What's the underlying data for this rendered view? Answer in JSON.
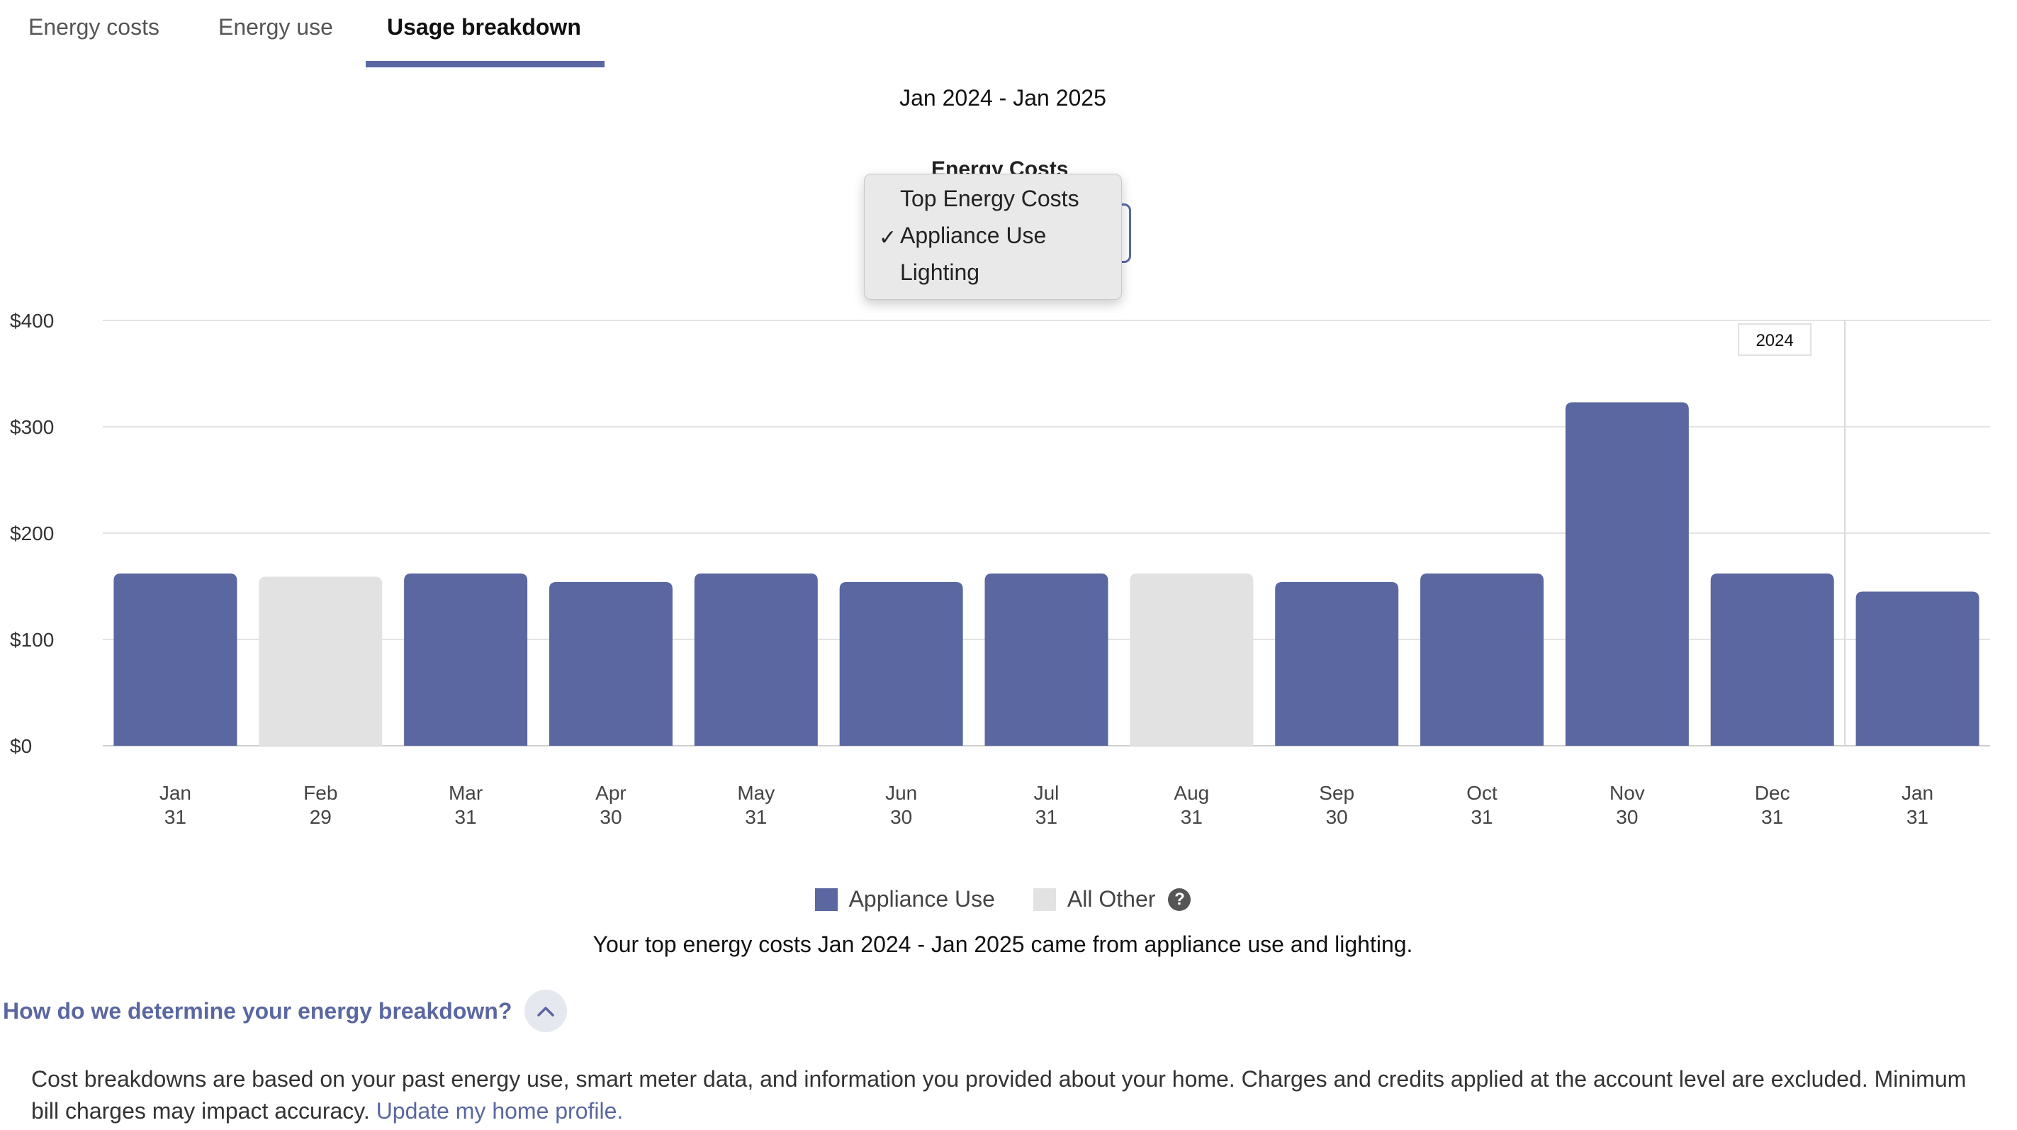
{
  "tabs": [
    {
      "label": "Energy costs",
      "active": false
    },
    {
      "label": "Energy use",
      "active": false
    },
    {
      "label": "Usage breakdown",
      "active": true
    }
  ],
  "date_range": "Jan 2024 - Jan 2025",
  "chart_title": "Energy Costs",
  "dropdown": {
    "options": [
      "Top Energy Costs",
      "Appliance Use",
      "Lighting"
    ],
    "selected": "Appliance Use",
    "check_glyph": "✓"
  },
  "chart_data": {
    "type": "bar",
    "categories": [
      "Jan 31",
      "Feb 29",
      "Mar 31",
      "Apr 30",
      "May 31",
      "Jun 30",
      "Jul 31",
      "Aug 31",
      "Sep 30",
      "Oct 31",
      "Nov 30",
      "Dec 31",
      "Jan 31"
    ],
    "x_tick_months": [
      "Jan",
      "Feb",
      "Mar",
      "Apr",
      "May",
      "Jun",
      "Jul",
      "Aug",
      "Sep",
      "Oct",
      "Nov",
      "Dec",
      "Jan"
    ],
    "x_tick_days": [
      "31",
      "29",
      "31",
      "30",
      "31",
      "30",
      "31",
      "31",
      "30",
      "31",
      "30",
      "31",
      "31"
    ],
    "values": [
      162,
      159,
      162,
      154,
      162,
      154,
      162,
      162,
      154,
      162,
      323,
      162,
      145
    ],
    "series_per_bar": [
      "Appliance Use",
      "All Other",
      "Appliance Use",
      "Appliance Use",
      "Appliance Use",
      "Appliance Use",
      "Appliance Use",
      "All Other",
      "Appliance Use",
      "Appliance Use",
      "Appliance Use",
      "Appliance Use",
      "Appliance Use"
    ],
    "y_ticks": [
      0,
      100,
      200,
      300,
      400
    ],
    "y_tick_labels": [
      "$0",
      "$100",
      "$200",
      "$300",
      "$400"
    ],
    "ylim": [
      0,
      400
    ],
    "year_marker_label": "2024",
    "grid": true,
    "legend_placement": "bottom-center"
  },
  "legend": [
    {
      "label": "Appliance Use",
      "color": "#5a67a1"
    },
    {
      "label": "All Other",
      "color": "#e2e2e2"
    }
  ],
  "colors": {
    "appliance": "#5a67a1",
    "other": "#e2e2e2",
    "accent": "#5a67a1"
  },
  "summary": "Your top energy costs Jan 2024 - Jan 2025 came from appliance use and lighting.",
  "faq": {
    "question": "How do we determine your energy breakdown?",
    "answer_text": "Cost breakdowns are based on your past energy use, smart meter data, and information you provided about your home. Charges and credits applied at the account level are excluded. Minimum bill charges may impact accuracy.",
    "link_text": "Update my home profile."
  },
  "help_glyph": "?"
}
